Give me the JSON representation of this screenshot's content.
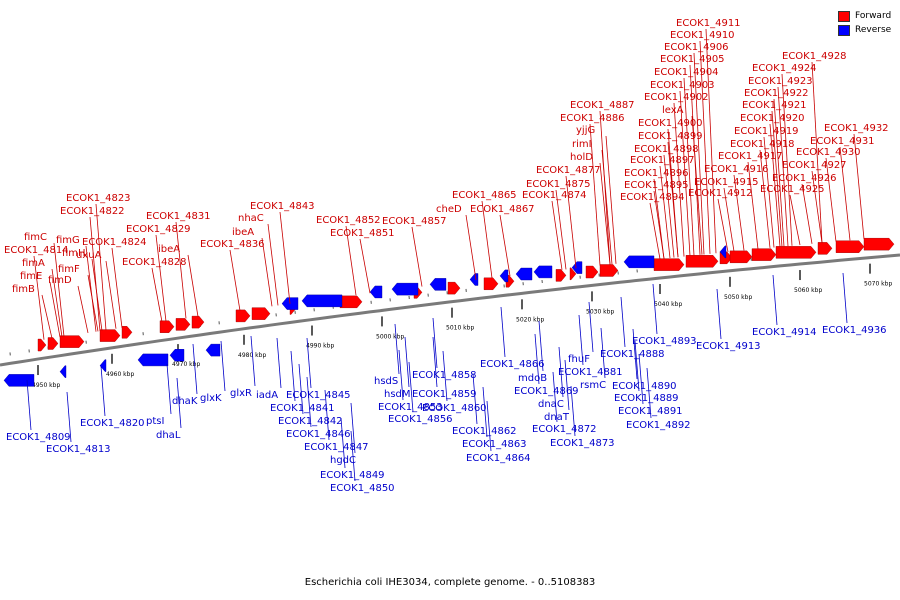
{
  "legend": {
    "forward": "Forward",
    "reverse": "Reverse"
  },
  "colors": {
    "forward": "#ff0000",
    "reverse": "#0000ff",
    "backbone": "#7a7a7a",
    "forward_line": "#c80000",
    "reverse_line": "#0000c8"
  },
  "caption": "Escherichia coli IHE3034, complete genome. - 0..5108383",
  "tick_labels": [
    "4950 kbp",
    "4960 kbp",
    "4970 kbp",
    "4980 kbp",
    "4990 kbp",
    "5000 kbp",
    "5010 kbp",
    "5020 kbp",
    "5030 kbp",
    "5040 kbp",
    "5050 kbp",
    "5060 kbp",
    "5070 kbp"
  ],
  "forward_genes": [
    "fimB",
    "fimE",
    "fimA",
    "ECOK1_4814",
    "fimC",
    "fimD",
    "fimF",
    "fimG",
    "fimH",
    "ECOK1_4822",
    "ECOK1_4823",
    "uxuA",
    "ECOK1_4824",
    "ECOK1_4828",
    "ECOK1_4829",
    "ibeA",
    "ECOK1_4831",
    "ECOK1_4836",
    "ibeA",
    "nhaC",
    "ECOK1_4843",
    "ECOK1_4851",
    "ECOK1_4852",
    "ECOK1_4857",
    "cheD",
    "ECOK1_4865",
    "ECOK1_4867",
    "ECOK1_4874",
    "ECOK1_4875",
    "ECOK1_4877",
    "holD",
    "rimI",
    "yjjG",
    "ECOK1_4886",
    "ECOK1_4887",
    "ECOK1_4894",
    "ECOK1_4895",
    "ECOK1_4896",
    "ECOK1_4897",
    "ECOK1_4898",
    "ECOK1_4899",
    "ECOK1_4900",
    "lexA",
    "ECOK1_4902",
    "ECOK1_4903",
    "ECOK1_4904",
    "ECOK1_4905",
    "ECOK1_4906",
    "ECOK1_4910",
    "ECOK1_4911",
    "ECOK1_4912",
    "ECOK1_4915",
    "ECOK1_4916",
    "ECOK1_4917",
    "ECOK1_4918",
    "ECOK1_4919",
    "ECOK1_4920",
    "ECOK1_4921",
    "ECOK1_4922",
    "ECOK1_4923",
    "ECOK1_4924",
    "ECOK1_4928",
    "ECOK1_4925",
    "ECOK1_4926",
    "ECOK1_4927",
    "ECOK1_4930",
    "ECOK1_4931",
    "ECOK1_4932"
  ],
  "reverse_genes": [
    "ECOK1_4809",
    "ECOK1_4813",
    "ECOK1_4820",
    "ptsI",
    "dhaL",
    "dhaK",
    "glxK",
    "glxR",
    "iadA",
    "ECOK1_4845",
    "ECOK1_4841",
    "ECOK1_4842",
    "ECOK1_4846",
    "ECOK1_4847",
    "hgdC",
    "ECOK1_4849",
    "ECOK1_4850",
    "hsdS",
    "hsdM",
    "ECOK1_4853",
    "ECOK1_4856",
    "ECOK1_4858",
    "ECOK1_4859",
    "ECOK1_4860",
    "ECOK1_4862",
    "ECOK1_4863",
    "ECOK1_4864",
    "ECOK1_4866",
    "mdoB",
    "ECOK1_4869",
    "dnaC",
    "dnaT",
    "ECOK1_4872",
    "ECOK1_4873",
    "fhuF",
    "ECOK1_4881",
    "rsmC",
    "ECOK1_4888",
    "ECOK1_4893",
    "ECOK1_4890",
    "ECOK1_4889",
    "ECOK1_4891",
    "ECOK1_4892",
    "ECOK1_4913",
    "ECOK1_4914",
    "ECOK1_4936"
  ]
}
